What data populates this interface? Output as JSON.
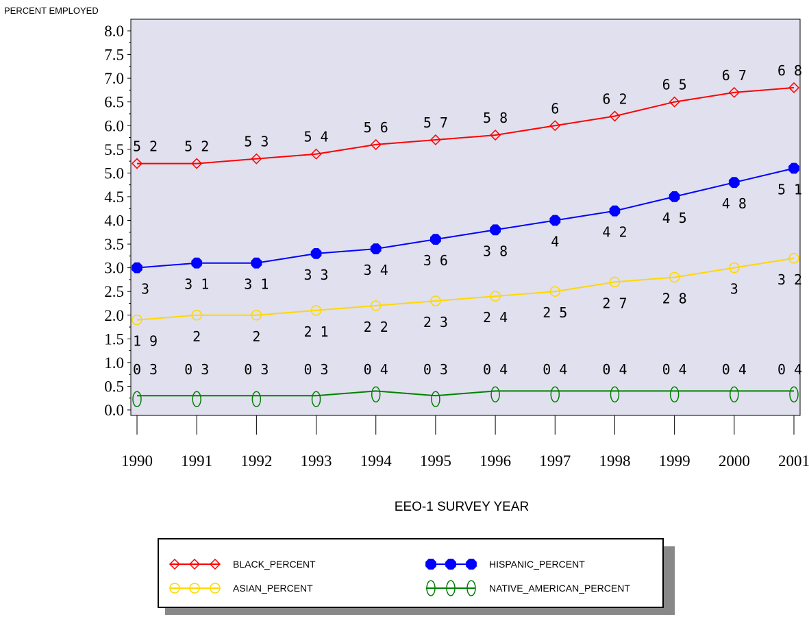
{
  "chart_data": {
    "type": "line",
    "ylabel": "PERCENT EMPLOYED",
    "xlabel": "EEO-1 SURVEY YEAR",
    "ylim": [
      0,
      8
    ],
    "y_ticks": [
      "0.0",
      "0.5",
      "1.0",
      "1.5",
      "2.0",
      "2.5",
      "3.0",
      "3.5",
      "4.0",
      "4.5",
      "5.0",
      "5.5",
      "6.0",
      "6.5",
      "7.0",
      "7.5",
      "8.0"
    ],
    "x": [
      "1990",
      "1991",
      "1992",
      "1993",
      "1994",
      "1995",
      "1996",
      "1997",
      "1998",
      "1999",
      "2000",
      "2001"
    ],
    "grid": false,
    "legend_position": "bottom",
    "plot_background": "#e0e0ee",
    "series": [
      {
        "name": "BLACK_PERCENT",
        "color": "#ff0000",
        "marker": "diamond",
        "values": [
          5.2,
          5.2,
          5.3,
          5.4,
          5.6,
          5.7,
          5.8,
          6.0,
          6.2,
          6.5,
          6.7,
          6.8
        ],
        "labels": [
          "5 2",
          "5 2",
          "5 3",
          "5 4",
          "5 6",
          "5 7",
          "5 8",
          "6",
          "6 2",
          "6 5",
          "6 7",
          "6 8"
        ]
      },
      {
        "name": "HISPANIC_PERCENT",
        "color": "#0000ff",
        "marker": "filled-octagon",
        "values": [
          3.0,
          3.1,
          3.1,
          3.3,
          3.4,
          3.6,
          3.8,
          4.0,
          4.2,
          4.5,
          4.8,
          5.1
        ],
        "labels": [
          "3",
          "3 1",
          "3 1",
          "3 3",
          "3 4",
          "3 6",
          "3 8",
          "4",
          "4 2",
          "4 5",
          "4 8",
          "5 1"
        ]
      },
      {
        "name": "ASIAN_PERCENT",
        "color": "#ffd700",
        "marker": "circle",
        "values": [
          1.9,
          2.0,
          2.0,
          2.1,
          2.2,
          2.3,
          2.4,
          2.5,
          2.7,
          2.8,
          3.0,
          3.2
        ],
        "labels": [
          "1 9",
          "2",
          "2",
          "2 1",
          "2 2",
          "2 3",
          "2 4",
          "2 5",
          "2 7",
          "2 8",
          "3",
          "3 2"
        ]
      },
      {
        "name": "NATIVE_AMERICAN_PERCENT",
        "color": "#008000",
        "marker": "zero",
        "values": [
          0.3,
          0.3,
          0.3,
          0.3,
          0.4,
          0.3,
          0.4,
          0.4,
          0.4,
          0.4,
          0.4,
          0.4
        ],
        "labels": [
          "0 3",
          "0 3",
          "0 3",
          "0 3",
          "0 4",
          "0 3",
          "0 4",
          "0 4",
          "0 4",
          "0 4",
          "0 4",
          "0 4"
        ],
        "marker_text": "0"
      }
    ]
  }
}
